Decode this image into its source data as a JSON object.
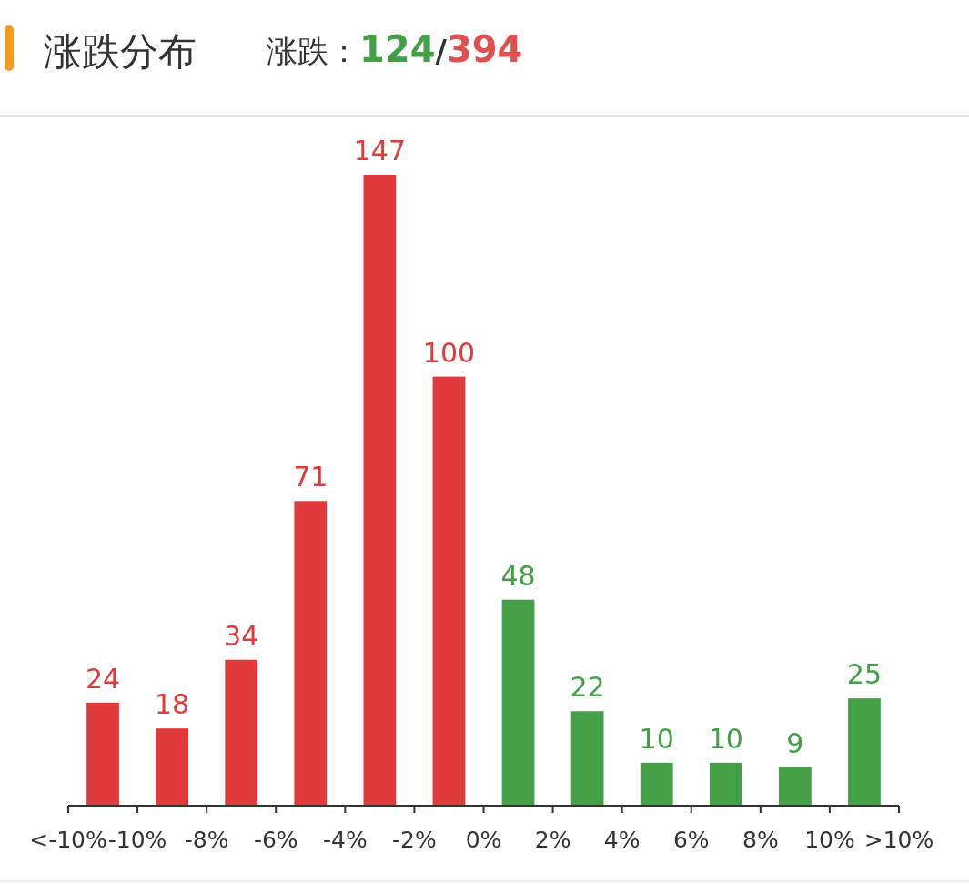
{
  "chart_data": {
    "type": "bar",
    "title": "涨跌分布",
    "subtitle": "涨跌：124/394",
    "x": [
      -11,
      -9,
      -7,
      -5,
      -3,
      -1,
      1,
      3,
      5,
      7,
      9,
      11
    ],
    "values": [
      24,
      18,
      34,
      71,
      147,
      100,
      48,
      22,
      10,
      10,
      9,
      25
    ],
    "colors": [
      "#e03a3a",
      "#e03a3a",
      "#e03a3a",
      "#e03a3a",
      "#e03a3a",
      "#e03a3a",
      "#43a047",
      "#43a047",
      "#43a047",
      "#43a047",
      "#43a047",
      "#43a047"
    ],
    "xlim": [
      -12,
      12
    ],
    "xticks": [
      {
        "value": -12,
        "label": "<-10%"
      },
      {
        "value": -10,
        "label": "-10%"
      },
      {
        "value": -8,
        "label": "-8%"
      },
      {
        "value": -6,
        "label": "-6%"
      },
      {
        "value": -4,
        "label": "-4%"
      },
      {
        "value": -2,
        "label": "-2%"
      },
      {
        "value": 0,
        "label": "0%"
      },
      {
        "value": 2,
        "label": "2%"
      },
      {
        "value": 4,
        "label": "4%"
      },
      {
        "value": 6,
        "label": "6%"
      },
      {
        "value": 8,
        "label": "8%"
      },
      {
        "value": 10,
        "label": "10%"
      },
      {
        "value": 12,
        "label": ">10%"
      }
    ],
    "data_labels": true,
    "grid": false
  }
}
